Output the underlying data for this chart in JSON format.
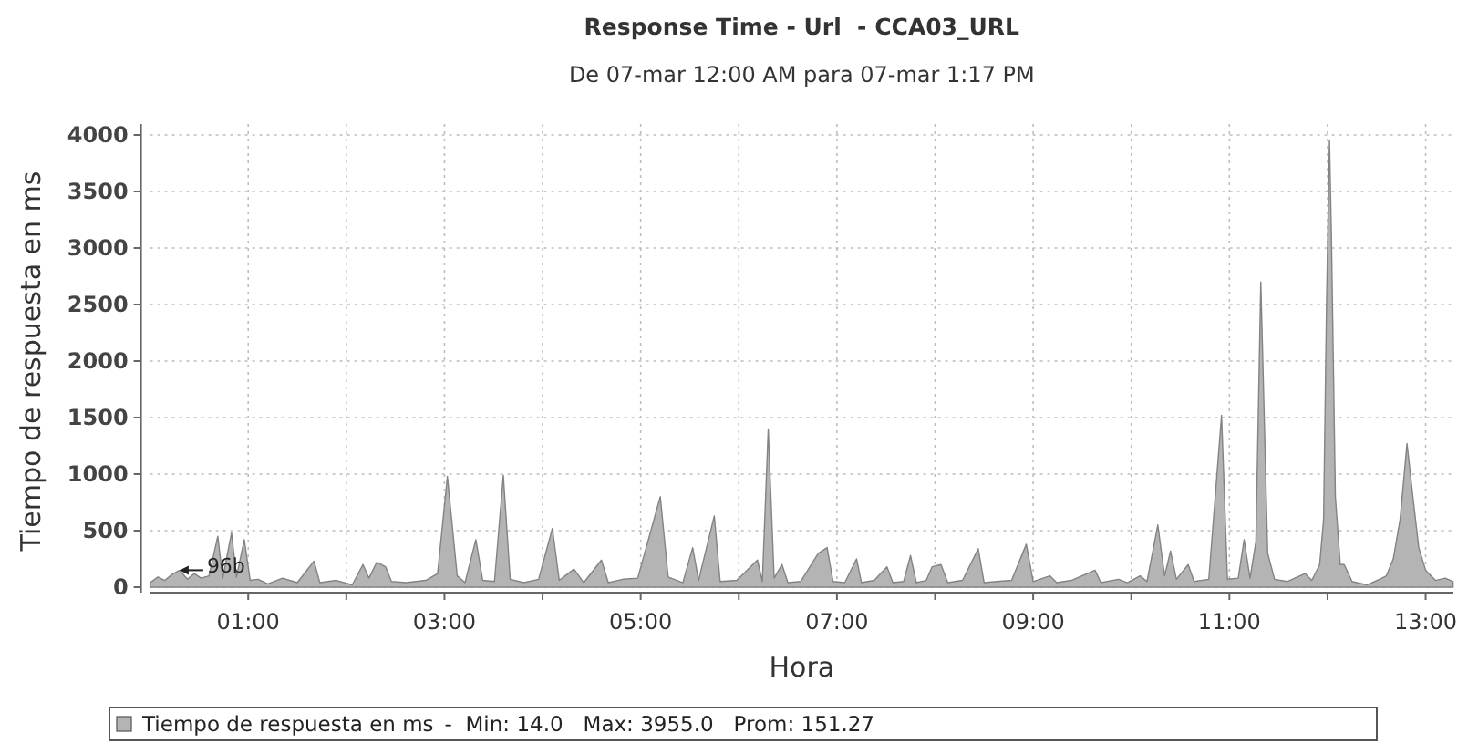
{
  "chart_data": {
    "type": "area",
    "title": "Response Time - Url  - CCA03_URL",
    "subtitle": "De 07-mar 12:00 AM para 07-mar 1:17 PM",
    "xlabel": "Hora",
    "ylabel": "Tiempo de respuesta en ms",
    "x": [
      0.0,
      0.08,
      0.15,
      0.22,
      0.3,
      0.38,
      0.45,
      0.52,
      0.6,
      0.69,
      0.74,
      0.83,
      0.88,
      0.96,
      1.02,
      1.1,
      1.2,
      1.35,
      1.5,
      1.67,
      1.73,
      1.9,
      2.06,
      2.17,
      2.23,
      2.31,
      2.4,
      2.46,
      2.61,
      2.81,
      2.93,
      3.03,
      3.13,
      3.21,
      3.32,
      3.39,
      3.51,
      3.6,
      3.67,
      3.81,
      3.96,
      4.1,
      4.17,
      4.32,
      4.42,
      4.6,
      4.67,
      4.82,
      4.97,
      5.2,
      5.28,
      5.43,
      5.53,
      5.59,
      5.75,
      5.81,
      5.98,
      6.19,
      6.24,
      6.3,
      6.36,
      6.44,
      6.5,
      6.63,
      6.81,
      6.9,
      6.96,
      7.08,
      7.2,
      7.25,
      7.38,
      7.51,
      7.57,
      7.68,
      7.75,
      7.81,
      7.91,
      7.97,
      8.06,
      8.13,
      8.28,
      8.44,
      8.5,
      8.63,
      8.78,
      8.93,
      9.0,
      9.17,
      9.24,
      9.39,
      9.63,
      9.69,
      9.87,
      9.96,
      10.09,
      10.16,
      10.27,
      10.34,
      10.4,
      10.46,
      10.58,
      10.64,
      10.79,
      10.92,
      10.98,
      11.09,
      11.15,
      11.21,
      11.27,
      11.32,
      11.39,
      11.46,
      11.59,
      11.77,
      11.84,
      11.92,
      11.96,
      11.99,
      12.02,
      12.04,
      12.08,
      12.13,
      12.17,
      12.25,
      12.4,
      12.53,
      12.6,
      12.67,
      12.74,
      12.81,
      12.87,
      12.93,
      13.0,
      13.1,
      13.2,
      13.28
    ],
    "series": [
      {
        "name": "Tiempo de respuesta en ms",
        "color": "#b4b4b4",
        "values": [
          40,
          90,
          60,
          110,
          150,
          70,
          120,
          80,
          100,
          450,
          80,
          480,
          90,
          420,
          60,
          70,
          30,
          80,
          40,
          230,
          40,
          60,
          20,
          200,
          80,
          220,
          180,
          50,
          40,
          60,
          120,
          980,
          100,
          40,
          420,
          60,
          50,
          990,
          70,
          40,
          70,
          520,
          60,
          160,
          40,
          240,
          40,
          70,
          80,
          800,
          90,
          40,
          350,
          60,
          630,
          50,
          60,
          240,
          50,
          1400,
          80,
          200,
          40,
          50,
          300,
          350,
          50,
          40,
          250,
          40,
          60,
          180,
          40,
          50,
          280,
          40,
          60,
          180,
          200,
          40,
          60,
          340,
          40,
          50,
          60,
          380,
          50,
          100,
          40,
          60,
          150,
          40,
          70,
          40,
          100,
          50,
          550,
          100,
          320,
          70,
          200,
          50,
          70,
          1520,
          70,
          80,
          420,
          80,
          400,
          2700,
          300,
          70,
          50,
          120,
          60,
          200,
          600,
          2500,
          3955,
          3100,
          800,
          200,
          200,
          50,
          20,
          70,
          100,
          250,
          600,
          1270,
          800,
          350,
          150,
          60,
          80,
          50
        ]
      }
    ],
    "xlim": [
      0,
      13.283
    ],
    "ylim": [
      0,
      4000
    ],
    "xticks": [
      {
        "value": 1,
        "label": "01:00"
      },
      {
        "value": 2,
        "label": null
      },
      {
        "value": 3,
        "label": "03:00"
      },
      {
        "value": 4,
        "label": null
      },
      {
        "value": 5,
        "label": "05:00"
      },
      {
        "value": 6,
        "label": null
      },
      {
        "value": 7,
        "label": "07:00"
      },
      {
        "value": 8,
        "label": null
      },
      {
        "value": 9,
        "label": "09:00"
      },
      {
        "value": 10,
        "label": null
      },
      {
        "value": 11,
        "label": "11:00"
      },
      {
        "value": 12,
        "label": null
      },
      {
        "value": 13,
        "label": "13:00"
      }
    ],
    "yticks": [
      0,
      500,
      1000,
      1500,
      2000,
      2500,
      3000,
      3500,
      4000
    ],
    "grid": true,
    "legend": "bottom",
    "annotations": [
      "-  Min: 14.0   Max: 3955.0   Prom: 151.27",
      {
        "text": "96b",
        "x": 0.3,
        "y": 150
      }
    ]
  }
}
